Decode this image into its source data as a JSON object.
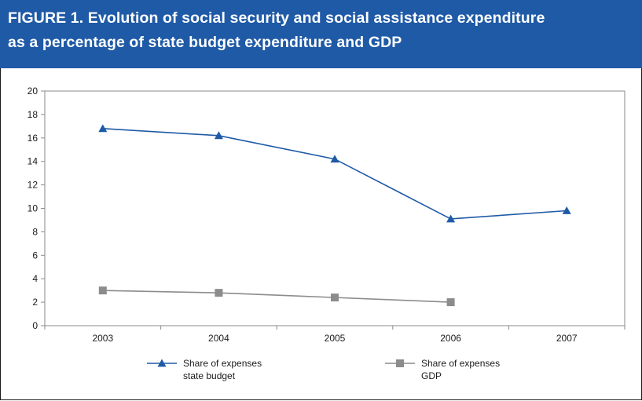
{
  "header": {
    "title_line1": "FIGURE 1. Evolution of social security and social assistance expenditure",
    "title_line2": "as a percentage of state budget expenditure and GDP"
  },
  "colors": {
    "header_bg": "#1f5aa6",
    "series_budget": "#1f5aa6",
    "series_gdp": "#8c8c8c"
  },
  "chart_data": {
    "type": "line",
    "title": "FIGURE 1. Evolution of social security and social assistance expenditure as a percentage of state budget expenditure and GDP",
    "xlabel": "",
    "ylabel": "",
    "categories": [
      "2003",
      "2004",
      "2005",
      "2006",
      "2007"
    ],
    "ylim": [
      0,
      20
    ],
    "yticks": [
      "0",
      "2",
      "4",
      "6",
      "8",
      "10",
      "12",
      "14",
      "16",
      "18",
      "20"
    ],
    "grid": false,
    "legend_position": "bottom",
    "series": [
      {
        "name": "Share of expenses state budget",
        "legend_lines": [
          "Share of expenses",
          "state budget"
        ],
        "marker": "triangle",
        "color": "#1f5aa6",
        "values": [
          16.8,
          16.2,
          14.2,
          9.1,
          9.8
        ]
      },
      {
        "name": "Share of expenses GDP",
        "legend_lines": [
          "Share of expenses",
          "GDP"
        ],
        "marker": "square",
        "color": "#8c8c8c",
        "values": [
          3.0,
          2.8,
          2.4,
          2.0,
          null
        ]
      }
    ]
  }
}
